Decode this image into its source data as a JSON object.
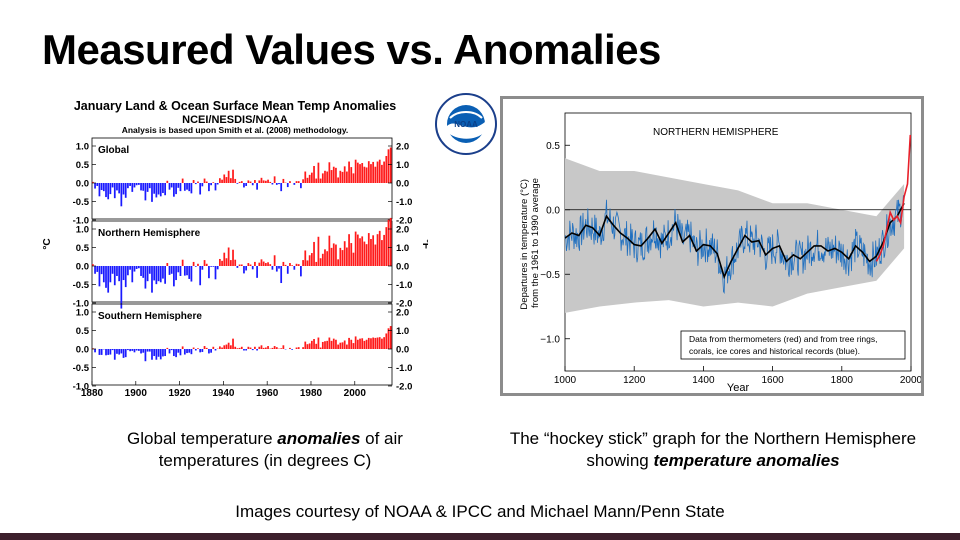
{
  "slide": {
    "title": "Measured Values vs. Anomalies",
    "caption_left": {
      "before": "Global temperature ",
      "emph": "anomalies",
      "after": " of air temperatures (in degrees C)"
    },
    "caption_right": {
      "before": "The “hockey stick” graph for the Northern Hemisphere showing ",
      "emph": "temperature anomalies",
      "after": ""
    },
    "credit": "Images courtesy of NOAA & IPCC and Michael Mann/Penn State",
    "logo_text": "NOAA",
    "colors": {
      "bar_positive": "#ff1a1a",
      "bar_negative": "#1a1aff",
      "footer_bar": "#3d1f2c",
      "proxy_blue": "#1f6fbf",
      "uncertainty_gray": "#c8c8c8",
      "thermometer_red": "#e8202a"
    }
  },
  "chart_data": [
    {
      "type": "bar",
      "title": "January Land & Ocean Surface Mean Temp Anomalies",
      "subtitle": "NCEI/NESDIS/NOAA",
      "note": "Analysis is based upon Smith et al. (2008) methodology.",
      "ylabel_left": "°C",
      "ylabel_right": "°F",
      "xlim": [
        1880,
        2017
      ],
      "x_ticks": [
        "1880",
        "1900",
        "1920",
        "1940",
        "1960",
        "1980",
        "2000"
      ],
      "y_ticks_c": [
        "1.0",
        "0.5",
        "0.0",
        "-0.5",
        "-1.0"
      ],
      "y_ticks_f": [
        "2.0",
        "1.0",
        "0.0",
        "-1.0",
        "-2.0"
      ],
      "ylim": [
        -1.2,
        1.2
      ],
      "panels": [
        {
          "name": "Global",
          "start_year": 1880,
          "values": [
            0.03,
            -0.15,
            -0.08,
            -0.36,
            -0.19,
            -0.22,
            -0.38,
            -0.44,
            -0.3,
            -0.12,
            -0.41,
            -0.2,
            -0.28,
            -0.63,
            -0.31,
            -0.4,
            -0.14,
            -0.08,
            -0.24,
            -0.12,
            -0.06,
            -0.05,
            -0.2,
            -0.21,
            -0.47,
            -0.24,
            -0.14,
            -0.51,
            -0.29,
            -0.39,
            -0.31,
            -0.36,
            -0.27,
            -0.33,
            0.06,
            -0.18,
            -0.12,
            -0.37,
            -0.3,
            -0.13,
            -0.22,
            0.12,
            -0.21,
            -0.18,
            -0.22,
            -0.28,
            0.08,
            -0.03,
            0.04,
            -0.31,
            -0.09,
            0.12,
            0.04,
            -0.22,
            -0.06,
            0.02,
            -0.2,
            -0.04,
            0.13,
            0.09,
            0.23,
            0.16,
            0.33,
            0.13,
            0.36,
            0.11,
            -0.02,
            0.03,
            0.05,
            -0.12,
            -0.08,
            0.07,
            0.04,
            -0.06,
            0.08,
            -0.18,
            0.07,
            0.14,
            0.07,
            0.06,
            0.09,
            0.03,
            -0.04,
            0.18,
            -0.05,
            -0.03,
            -0.22,
            0.11,
            0.01,
            -0.11,
            0.05,
            0.0,
            -0.05,
            0.05,
            0.05,
            -0.14,
            0.1,
            0.31,
            0.14,
            0.22,
            0.28,
            0.46,
            0.12,
            0.55,
            0.12,
            0.26,
            0.33,
            0.31,
            0.56,
            0.35,
            0.44,
            0.41,
            0.15,
            0.33,
            0.3,
            0.45,
            0.31,
            0.58,
            0.43,
            0.26,
            0.63,
            0.55,
            0.51,
            0.54,
            0.44,
            0.42,
            0.59,
            0.51,
            0.57,
            0.44,
            0.58,
            0.63,
            0.49,
            0.58,
            0.73,
            0.91,
            0.96
          ]
        },
        {
          "name": "Northern Hemisphere",
          "start_year": 1880,
          "values": [
            0.05,
            -0.21,
            -0.16,
            -0.55,
            -0.22,
            -0.44,
            -0.59,
            -0.72,
            -0.44,
            -0.21,
            -0.52,
            -0.27,
            -0.41,
            -1.15,
            -0.38,
            -0.57,
            -0.25,
            -0.1,
            -0.44,
            -0.15,
            -0.08,
            -0.06,
            -0.27,
            -0.32,
            -0.61,
            -0.41,
            -0.21,
            -0.72,
            -0.39,
            -0.49,
            -0.41,
            -0.44,
            -0.34,
            -0.48,
            0.08,
            -0.24,
            -0.21,
            -0.55,
            -0.38,
            -0.17,
            -0.27,
            0.17,
            -0.26,
            -0.25,
            -0.35,
            -0.42,
            0.11,
            -0.02,
            0.06,
            -0.52,
            -0.1,
            0.16,
            0.06,
            -0.33,
            -0.02,
            -0.02,
            -0.36,
            -0.09,
            0.19,
            0.14,
            0.36,
            0.21,
            0.5,
            0.16,
            0.44,
            0.17,
            -0.05,
            0.04,
            0.04,
            -0.2,
            -0.12,
            0.08,
            0.04,
            -0.09,
            0.11,
            -0.32,
            0.09,
            0.18,
            0.12,
            0.08,
            0.1,
            0.05,
            -0.1,
            0.29,
            -0.15,
            -0.07,
            -0.46,
            0.11,
            0.03,
            -0.21,
            0.08,
            0.02,
            -0.1,
            0.06,
            0.05,
            -0.28,
            0.16,
            0.42,
            0.15,
            0.29,
            0.35,
            0.65,
            0.11,
            0.79,
            0.21,
            0.33,
            0.45,
            0.4,
            0.82,
            0.49,
            0.61,
            0.58,
            0.18,
            0.49,
            0.43,
            0.67,
            0.5,
            0.86,
            0.62,
            0.36,
            0.93,
            0.85,
            0.75,
            0.8,
            0.66,
            0.59,
            0.89,
            0.73,
            0.83,
            0.58,
            0.86,
            0.95,
            0.7,
            0.84,
            1.05,
            1.25,
            1.3
          ]
        },
        {
          "name": "Southern Hemisphere",
          "start_year": 1880,
          "values": [
            0.02,
            -0.09,
            0.0,
            -0.16,
            -0.16,
            -0.01,
            -0.17,
            -0.16,
            -0.15,
            -0.03,
            -0.29,
            -0.13,
            -0.15,
            -0.12,
            -0.24,
            -0.22,
            -0.03,
            -0.06,
            -0.05,
            -0.09,
            -0.04,
            -0.05,
            -0.12,
            -0.1,
            -0.33,
            -0.07,
            -0.07,
            -0.29,
            -0.19,
            -0.29,
            -0.21,
            -0.28,
            -0.2,
            -0.19,
            0.03,
            -0.12,
            -0.03,
            -0.19,
            -0.22,
            -0.1,
            -0.17,
            0.07,
            -0.15,
            -0.11,
            -0.1,
            -0.14,
            0.04,
            -0.04,
            0.02,
            -0.09,
            -0.08,
            0.08,
            0.03,
            -0.12,
            -0.1,
            0.06,
            -0.04,
            0.01,
            0.07,
            0.04,
            0.1,
            0.12,
            0.17,
            0.1,
            0.28,
            0.06,
            0.02,
            0.03,
            0.06,
            -0.04,
            -0.04,
            0.06,
            0.04,
            -0.03,
            0.06,
            -0.04,
            0.06,
            0.1,
            0.03,
            0.04,
            0.08,
            0.01,
            0.03,
            0.08,
            0.05,
            0.01,
            0.02,
            0.1,
            -0.01,
            0.0,
            0.03,
            -0.02,
            0.0,
            0.04,
            0.05,
            0.0,
            0.05,
            0.2,
            0.13,
            0.15,
            0.22,
            0.27,
            0.14,
            0.31,
            0.04,
            0.19,
            0.21,
            0.22,
            0.31,
            0.22,
            0.28,
            0.25,
            0.12,
            0.17,
            0.18,
            0.23,
            0.12,
            0.3,
            0.25,
            0.16,
            0.34,
            0.25,
            0.28,
            0.29,
            0.22,
            0.25,
            0.3,
            0.29,
            0.31,
            0.3,
            0.31,
            0.32,
            0.28,
            0.32,
            0.42,
            0.56,
            0.62
          ]
        }
      ]
    },
    {
      "type": "line",
      "title": "NORTHERN HEMISPHERE",
      "xlabel": "Year",
      "ylabel": "Departures in temperature (°C) from the 1961 to 1990 average",
      "xlim": [
        1000,
        2000
      ],
      "ylim": [
        -1.25,
        0.75
      ],
      "x_ticks": [
        "1000",
        "1200",
        "1400",
        "1600",
        "1800",
        "2000"
      ],
      "y_ticks": [
        "0.5",
        "0.0",
        "−0.5",
        "−1.0"
      ],
      "legend": "Data from thermometers (red) and from tree rings, corals, ice cores and historical records (blue).",
      "legend_lines": [
        "Data from thermometers (red) and from tree rings,",
        "corals, ice cores and historical records (blue)."
      ],
      "series": [
        {
          "name": "proxy smoothed",
          "x": [
            1000,
            1020,
            1040,
            1060,
            1080,
            1100,
            1120,
            1140,
            1160,
            1180,
            1200,
            1220,
            1240,
            1260,
            1280,
            1300,
            1320,
            1340,
            1360,
            1380,
            1400,
            1420,
            1440,
            1460,
            1480,
            1500,
            1520,
            1540,
            1560,
            1580,
            1600,
            1620,
            1640,
            1660,
            1680,
            1700,
            1720,
            1740,
            1760,
            1780,
            1800,
            1820,
            1840,
            1860,
            1880,
            1900,
            1920,
            1940,
            1960,
            1980
          ],
          "y": [
            -0.22,
            -0.18,
            -0.2,
            -0.12,
            -0.14,
            -0.2,
            -0.05,
            -0.12,
            -0.18,
            -0.22,
            -0.27,
            -0.28,
            -0.22,
            -0.15,
            -0.26,
            -0.18,
            -0.1,
            -0.25,
            -0.2,
            -0.32,
            -0.27,
            -0.28,
            -0.34,
            -0.52,
            -0.4,
            -0.3,
            -0.2,
            -0.25,
            -0.24,
            -0.35,
            -0.3,
            -0.28,
            -0.4,
            -0.35,
            -0.38,
            -0.33,
            -0.28,
            -0.28,
            -0.32,
            -0.3,
            -0.33,
            -0.38,
            -0.28,
            -0.33,
            -0.4,
            -0.36,
            -0.25,
            -0.1,
            -0.05,
            0.05
          ]
        },
        {
          "name": "uncertainty",
          "x": [
            1000,
            1100,
            1200,
            1300,
            1400,
            1500,
            1600,
            1700,
            1800,
            1900,
            1980
          ],
          "upper": [
            0.4,
            0.3,
            0.3,
            0.25,
            0.2,
            0.15,
            0.05,
            0.05,
            0.0,
            -0.05,
            0.2
          ],
          "lower": [
            -0.8,
            -0.75,
            -0.72,
            -0.7,
            -0.75,
            -0.72,
            -0.75,
            -0.65,
            -0.6,
            -0.55,
            -0.3
          ]
        },
        {
          "name": "thermometers",
          "x": [
            1900,
            1910,
            1920,
            1930,
            1940,
            1950,
            1960,
            1970,
            1980,
            1990,
            1998
          ],
          "y": [
            -0.4,
            -0.35,
            -0.28,
            -0.15,
            -0.02,
            -0.08,
            -0.05,
            -0.1,
            0.1,
            0.2,
            0.58
          ]
        }
      ]
    }
  ]
}
